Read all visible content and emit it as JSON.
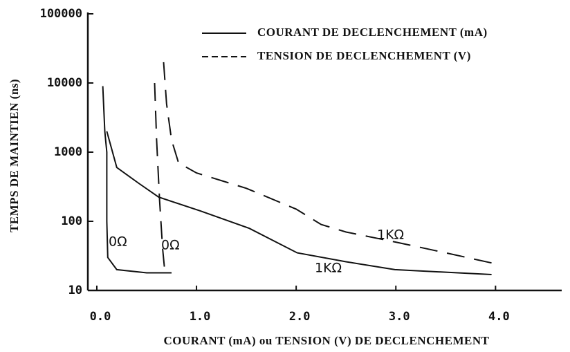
{
  "chart_data": {
    "type": "line",
    "x_label": "COURANT (mA) ou TENSION (V) DE DECLENCHEMENT",
    "y_label": "TEMPS DE MAINTIEN (ns)",
    "log_y": true,
    "legend": "upper right",
    "xlim": [
      -0.09,
      4.65
    ],
    "ylim": [
      10,
      100000
    ],
    "xticks": [
      {
        "value": 0,
        "label": "0.0"
      },
      {
        "value": 1,
        "label": "1.0"
      },
      {
        "value": 2,
        "label": "2.0"
      },
      {
        "value": 3,
        "label": "3.0"
      },
      {
        "value": 4,
        "label": "4.0"
      }
    ],
    "yticks": [
      10,
      100,
      1000,
      10000,
      100000
    ],
    "series": [
      {
        "name": "COURANT DE DECLENCHEMENT (mA)",
        "color": "#111111",
        "dashed": false,
        "curves": [
          {
            "label": "0Ω",
            "x": [
              0.06,
              0.08,
              0.1,
              0.1,
              0.11,
              0.2,
              0.5,
              0.75
            ],
            "values": [
              9000,
              2000,
              1000,
              100,
              30,
              20,
              18,
              18
            ]
          },
          {
            "label": "1KΩ",
            "x": [
              0.1,
              0.2,
              0.42,
              0.62,
              1.04,
              1.53,
              2.01,
              2.5,
              2.99,
              3.96
            ],
            "values": [
              2000,
              600,
              355,
              224,
              141,
              79,
              35,
              26,
              20,
              17
            ]
          }
        ]
      },
      {
        "name": "TENSION DE DECLENCHEMENT (V)",
        "color": "#111111",
        "dashed": true,
        "curves": [
          {
            "label": "0Ω",
            "x": [
              0.58,
              0.6,
              0.63,
              0.66,
              0.68,
              0.73
            ],
            "values": [
              10000,
              1500,
              200,
              40,
              20,
              18
            ]
          },
          {
            "label": "1KΩ",
            "x": [
              0.67,
              0.7,
              0.75,
              0.82,
              1.0,
              1.5,
              2.0,
              2.25,
              2.5,
              3.0,
              3.5,
              3.96
            ],
            "values": [
              20000,
              5000,
              1500,
              700,
              500,
              300,
              150,
              90,
              70,
              50,
              35,
              25
            ]
          }
        ]
      }
    ]
  }
}
